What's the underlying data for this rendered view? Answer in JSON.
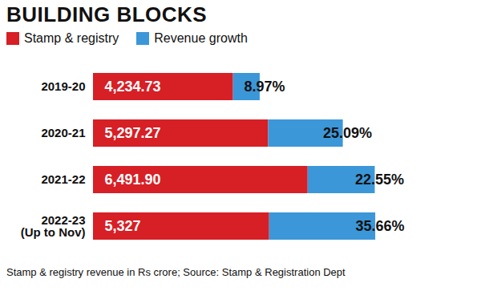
{
  "chart_data": {
    "type": "bar",
    "orientation": "horizontal",
    "title": "BUILDING BLOCKS",
    "caption": "Stamp & registry revenue in Rs crore; Source: Stamp & Registration Dept",
    "categories": [
      "2019-20",
      "2020-21",
      "2021-22",
      "2022-23\n(Up to Nov)"
    ],
    "series": [
      {
        "name": "Stamp & registry",
        "color": "#d71f26",
        "values": [
          4234.73,
          5297.27,
          6491.9,
          5327
        ],
        "value_labels": [
          "4,234.73",
          "5,297.27",
          "6,491.90",
          "5,327"
        ]
      },
      {
        "name": "Revenue growth",
        "color": "#3b97d8",
        "axis": "y2",
        "values": [
          8.97,
          25.09,
          22.55,
          35.66
        ],
        "value_labels": [
          "8.97%",
          "25.09%",
          "22.55%",
          "35.66%"
        ]
      }
    ],
    "ylim": [
      0,
      11250
    ],
    "y2lim": [
      0,
      125
    ],
    "stacked": true,
    "data_labels": true,
    "tick_labels": "x",
    "legend": "top-left"
  }
}
